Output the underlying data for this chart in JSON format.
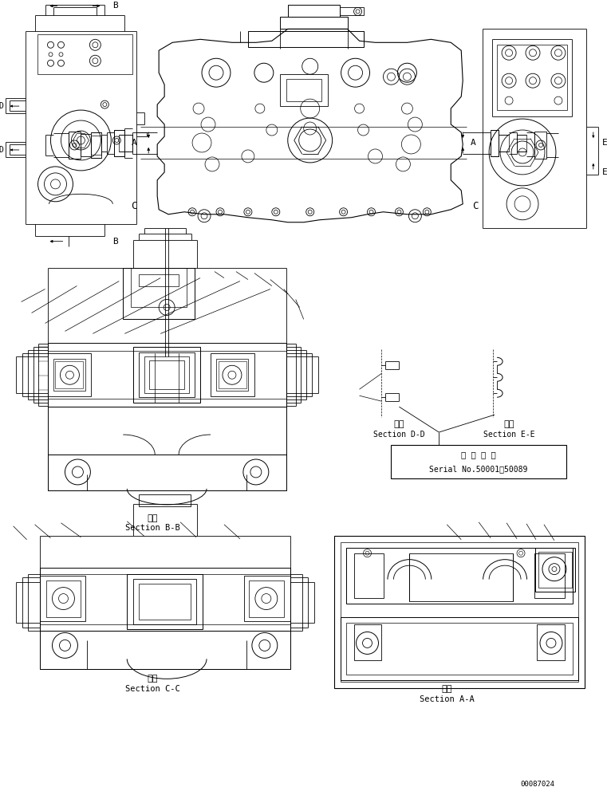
{
  "bg_color": "#ffffff",
  "line_color": "#000000",
  "fig_width": 7.61,
  "fig_height": 9.97,
  "dpi": 100,
  "part_number": "00087024",
  "labels": {
    "section_bb_kanji": "断面",
    "section_bb": "Section B-B",
    "section_cc_kanji": "断面",
    "section_cc": "Section C-C",
    "section_aa_kanji": "断面",
    "section_aa": "Section A-A",
    "section_dd_kanji": "断面",
    "section_dd": "Section D-D",
    "section_ee_kanji": "断面",
    "section_ee": "Section E-E",
    "serial_kanji": "適 用 号 機",
    "serial_no": "Serial No.50001～50089"
  }
}
